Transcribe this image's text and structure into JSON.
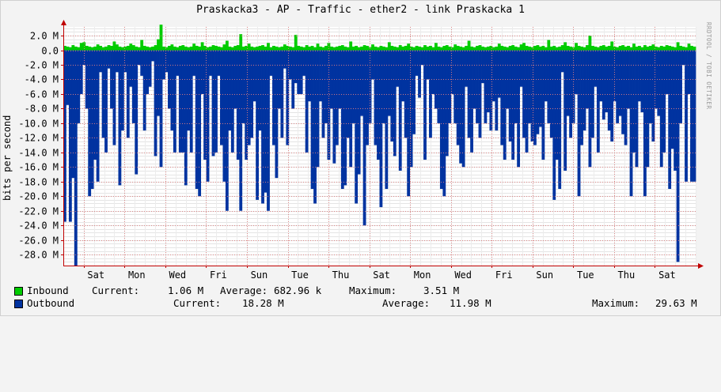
{
  "chart_data": {
    "type": "area",
    "title": "Praskacka3 - AP - Traffic - ether2 - link Praskacka 1",
    "ylabel": "bits per second",
    "xlabel": "",
    "watermark": "RRDTOOL / TOBI OETIKER",
    "ylim": [
      -29.5,
      3.2
    ],
    "yticks": [
      {
        "v": 2,
        "label": "2.0 M"
      },
      {
        "v": 0,
        "label": "0.0"
      },
      {
        "v": -2,
        "label": "-2.0 M"
      },
      {
        "v": -4,
        "label": "-4.0 M"
      },
      {
        "v": -6,
        "label": "-6.0 M"
      },
      {
        "v": -8,
        "label": "-8.0 M"
      },
      {
        "v": -10,
        "label": "-10.0 M"
      },
      {
        "v": -12,
        "label": "-12.0 M"
      },
      {
        "v": -14,
        "label": "-14.0 M"
      },
      {
        "v": -16,
        "label": "-16.0 M"
      },
      {
        "v": -18,
        "label": "-18.0 M"
      },
      {
        "v": -20,
        "label": "-20.0 M"
      },
      {
        "v": -22,
        "label": "-22.0 M"
      },
      {
        "v": -24,
        "label": "-24.0 M"
      },
      {
        "v": -26,
        "label": "-26.0 M"
      },
      {
        "v": -28,
        "label": "-28.0 M"
      }
    ],
    "xlim": [
      0,
      15.5
    ],
    "xticks": [
      {
        "v": 0.8,
        "label": "Sat"
      },
      {
        "v": 1.8,
        "label": "Mon"
      },
      {
        "v": 2.8,
        "label": "Wed"
      },
      {
        "v": 3.8,
        "label": "Fri"
      },
      {
        "v": 4.8,
        "label": "Sun"
      },
      {
        "v": 5.8,
        "label": "Tue"
      },
      {
        "v": 6.8,
        "label": "Thu"
      },
      {
        "v": 7.8,
        "label": "Sat"
      },
      {
        "v": 8.8,
        "label": "Mon"
      },
      {
        "v": 9.8,
        "label": "Wed"
      },
      {
        "v": 10.8,
        "label": "Fri"
      },
      {
        "v": 11.8,
        "label": "Sun"
      },
      {
        "v": 12.8,
        "label": "Tue"
      },
      {
        "v": 13.8,
        "label": "Thu"
      },
      {
        "v": 14.8,
        "label": "Sat"
      }
    ],
    "series": [
      {
        "name": "Inbound",
        "color": "#00cc00",
        "values": [
          0.6,
          0.5,
          0.4,
          0.7,
          0.5,
          0.4,
          1.0,
          1.1,
          0.6,
          0.5,
          0.4,
          0.5,
          0.8,
          0.6,
          0.4,
          0.5,
          0.7,
          0.6,
          1.2,
          0.8,
          0.5,
          0.4,
          0.5,
          0.6,
          0.9,
          0.7,
          0.5,
          0.4,
          1.4,
          0.6,
          0.5,
          0.4,
          0.5,
          0.7,
          1.5,
          3.5,
          0.5,
          0.4,
          0.6,
          0.8,
          0.5,
          0.4,
          0.6,
          0.7,
          0.5,
          0.4,
          0.5,
          0.9,
          0.6,
          0.5,
          1.1,
          0.6,
          0.4,
          0.5,
          0.7,
          0.6,
          0.5,
          0.4,
          0.8,
          1.3,
          0.5,
          0.4,
          0.6,
          0.7,
          2.2,
          0.5,
          0.6,
          0.9,
          0.5,
          0.4,
          0.5,
          0.6,
          0.7,
          0.5,
          1.0,
          0.4,
          0.6,
          0.5,
          0.4,
          0.5,
          0.8,
          0.6,
          0.5,
          0.4,
          2.1,
          0.6,
          0.5,
          0.4,
          0.7,
          0.5,
          0.6,
          0.4,
          0.9,
          0.5,
          0.4,
          0.6,
          1.0,
          0.5,
          0.4,
          0.5,
          0.6,
          0.7,
          0.5,
          0.4,
          1.2,
          0.5,
          0.6,
          0.4,
          0.5,
          0.7,
          0.6,
          0.4,
          0.8,
          0.5,
          0.4,
          0.6,
          0.5,
          0.4,
          1.1,
          0.6,
          0.5,
          0.4,
          0.7,
          0.5,
          0.6,
          0.9,
          0.5,
          0.4,
          0.6,
          0.5,
          0.4,
          0.7,
          0.5,
          0.6,
          0.4,
          1.0,
          0.5,
          0.4,
          0.6,
          0.7,
          0.5,
          0.4,
          0.8,
          0.6,
          0.5,
          0.4,
          0.6,
          1.3,
          0.5,
          0.4,
          0.6,
          0.7,
          0.5,
          0.4,
          0.5,
          0.6,
          0.4,
          0.5,
          0.9,
          0.6,
          0.5,
          0.4,
          0.6,
          0.7,
          0.5,
          0.4,
          0.8,
          1.0,
          0.6,
          0.5,
          0.4,
          0.6,
          0.7,
          0.5,
          0.6,
          0.4,
          1.4,
          0.5,
          0.6,
          0.4,
          0.5,
          0.7,
          1.1,
          0.6,
          0.5,
          0.4,
          1.0,
          0.6,
          0.5,
          0.4,
          0.7,
          2.0,
          0.6,
          0.5,
          0.4,
          0.6,
          0.7,
          0.5,
          0.6,
          1.2,
          0.5,
          0.4,
          0.6,
          0.7,
          0.5,
          0.6,
          0.4,
          0.9,
          0.5,
          0.6,
          0.4,
          0.7,
          0.5,
          0.6,
          0.8,
          0.5,
          0.4,
          0.6,
          0.5,
          0.7,
          0.6,
          0.5,
          0.4,
          1.1,
          0.6,
          0.5,
          0.4,
          0.9,
          0.6,
          0.5,
          0.7,
          0.4,
          1.2,
          1.3,
          0.6,
          0.5,
          0.4,
          1.0,
          1.1,
          1.2,
          1.0,
          1.1,
          1.06
        ]
      },
      {
        "name": "Outbound",
        "color": "#0033a0",
        "values": [
          -23.5,
          -7.5,
          -23.5,
          -17.5,
          -29.5,
          -10,
          -6,
          -2,
          -8,
          -20,
          -19,
          -15,
          -18,
          -3,
          -12,
          -14,
          -2.5,
          -8,
          -13,
          -3,
          -18.5,
          -11,
          -3,
          -12,
          -5,
          -10,
          -17,
          -2,
          -3.5,
          -11,
          -6,
          -5,
          -1.5,
          -14.5,
          -9,
          -16,
          -4,
          -3,
          -8,
          -11,
          -14,
          -3.5,
          -14,
          -14,
          -18.5,
          -11,
          -14,
          -3.5,
          -19,
          -20,
          -6,
          -15,
          -18,
          -3.5,
          -14.5,
          -14,
          -3.5,
          -13,
          -18,
          -22,
          -11,
          -14,
          -8,
          -15,
          -22,
          -10,
          -15,
          -13,
          -12,
          -7,
          -20.5,
          -11,
          -21,
          -19.5,
          -22,
          -3.5,
          -13,
          -17.5,
          -8,
          -12,
          -2.5,
          -13,
          -4,
          -8,
          -4.5,
          -6,
          -6,
          -3.5,
          -14,
          -7,
          -19,
          -21,
          -16,
          -7,
          -12,
          -10,
          -15,
          -8,
          -15.5,
          -13,
          -8,
          -19,
          -18.5,
          -12,
          -16,
          -10,
          -21,
          -17,
          -9,
          -24,
          -13,
          -10,
          -4,
          -13,
          -15,
          -21.5,
          -10,
          -19,
          -9,
          -12.5,
          -14.5,
          -5,
          -16.5,
          -7,
          -12,
          -20,
          -16,
          -11.5,
          -3.5,
          -6.5,
          -2,
          -15,
          -4,
          -12,
          -6,
          -8,
          -10,
          -19,
          -20,
          -14.5,
          -10,
          -6,
          -10,
          -13,
          -15.5,
          -16,
          -5,
          -12,
          -14,
          -8,
          -10,
          -12,
          -4.5,
          -10,
          -8.5,
          -11,
          -7,
          -11,
          -6.5,
          -13,
          -15,
          -8,
          -12.5,
          -15,
          -10,
          -16,
          -5,
          -12,
          -14,
          -10,
          -12.5,
          -13,
          -11.5,
          -10.5,
          -15,
          -7,
          -10,
          -12,
          -20.5,
          -15,
          -19,
          -3,
          -16.5,
          -9,
          -12,
          -10,
          -6,
          -20,
          -13,
          -11,
          -8,
          -16,
          -12,
          -5,
          -14,
          -7,
          -9.5,
          -8.5,
          -11,
          -12.5,
          -7,
          -10,
          -9,
          -11.5,
          -13,
          -8,
          -20,
          -14,
          -16,
          -7,
          -8.5,
          -20,
          -16,
          -10,
          -12.5,
          -8,
          -9,
          -16,
          -14,
          -6,
          -19,
          -13.5,
          -16.5,
          -29,
          -10,
          -2,
          -18,
          -6,
          -18,
          -18
        ]
      }
    ]
  },
  "legend": {
    "inbound": {
      "name": "Inbound",
      "current_label": "Current:",
      "current": "1.06 M",
      "average_label": "Average:",
      "average": "682.96 k",
      "maximum_label": "Maximum:",
      "maximum": "3.51 M",
      "color": "#00cc00"
    },
    "outbound": {
      "name": "Outbound",
      "current_label": "Current:",
      "current": "18.28 M",
      "average_label": "Average:",
      "average": "11.98 M",
      "maximum_label": "Maximum:",
      "maximum": "29.63 M",
      "color": "#0033a0"
    }
  }
}
